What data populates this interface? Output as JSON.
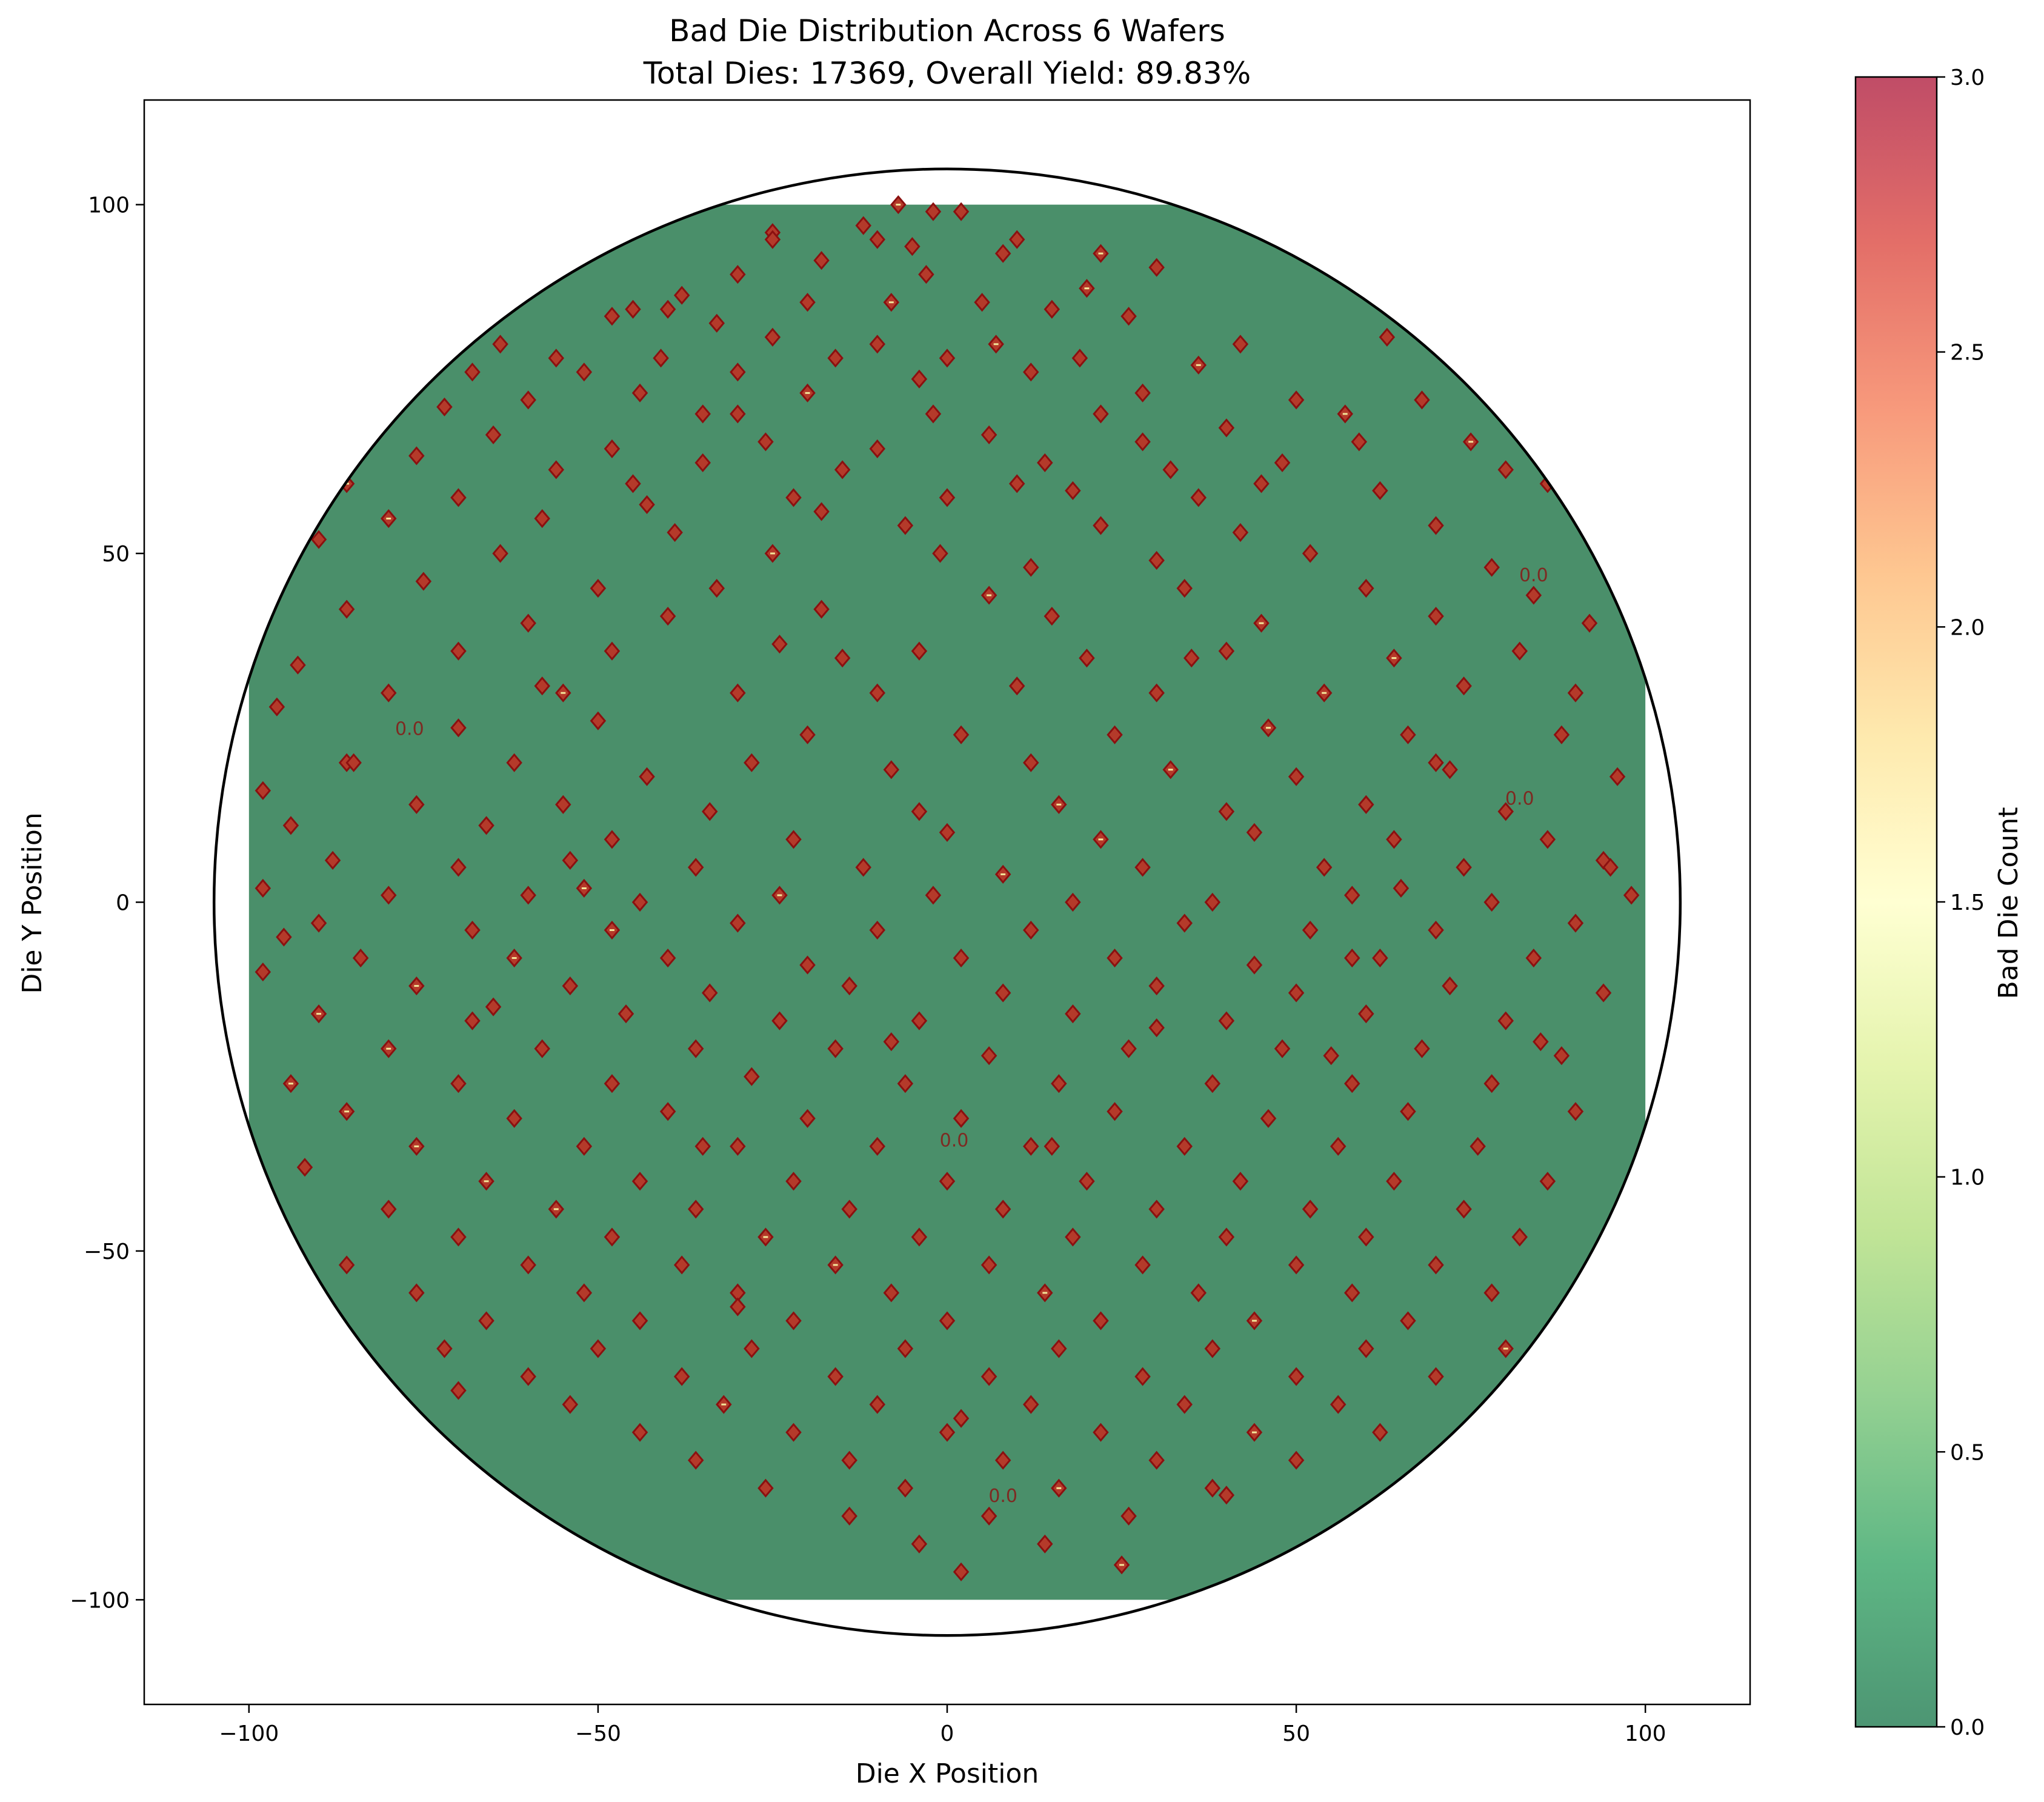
{
  "chart_data": {
    "type": "heatmap",
    "title_line1": "Bad Die Distribution Across 6 Wafers",
    "title_line2": "Total Dies: 17369, Overall Yield: 89.83%",
    "xlabel": "Die X Position",
    "ylabel": "Die Y Position",
    "xlim": [
      -115,
      115
    ],
    "ylim": [
      -115,
      115
    ],
    "x_ticks": [
      -100,
      -50,
      0,
      50,
      100
    ],
    "y_ticks": [
      -100,
      -50,
      0,
      50,
      100
    ],
    "x_tick_labels": [
      "−100",
      "−50",
      "0",
      "50",
      "100"
    ],
    "y_tick_labels": [
      "−100",
      "−50",
      "0",
      "50",
      "100"
    ],
    "grid_extent": [
      -100,
      100
    ],
    "wafer_outline": {
      "center": [
        0,
        0
      ],
      "radius": 105
    },
    "grid": false,
    "colorbar": {
      "label": "Bad Die Count",
      "range": [
        0,
        3
      ],
      "ticks": [
        0,
        0.5,
        1,
        1.5,
        2,
        2.5,
        3
      ],
      "tick_labels": [
        "0.0",
        "0.5",
        "1.0",
        "1.5",
        "2.0",
        "2.5",
        "3.0"
      ],
      "colormap": "RdYlGn_r",
      "stops": [
        "#006837",
        "#1a9850",
        "#66bd63",
        "#a6d96a",
        "#d9ef8b",
        "#ffffbf",
        "#fee08b",
        "#fdae61",
        "#f46d43",
        "#d73027",
        "#a50026"
      ],
      "alpha": 0.7
    },
    "contour_label": "0.0",
    "contour_label_positions": [
      [
        -77,
        24
      ],
      [
        84,
        46
      ],
      [
        82,
        14
      ],
      [
        1,
        -35
      ],
      [
        8,
        -86
      ]
    ],
    "colors": {
      "background_good": "#4a8f6a",
      "defect": "#8b1010",
      "defect_fill": "#b43a2a",
      "defect_highlight": "#f3e59a"
    },
    "defect_points": [
      [
        -7,
        100
      ],
      [
        -2,
        99
      ],
      [
        2,
        99
      ],
      [
        -12,
        97
      ],
      [
        -25,
        96
      ],
      [
        -10,
        95
      ],
      [
        -5,
        94
      ],
      [
        10,
        95
      ],
      [
        8,
        93
      ],
      [
        22,
        93
      ],
      [
        -18,
        92
      ],
      [
        30,
        91
      ],
      [
        -30,
        90
      ],
      [
        -3,
        90
      ],
      [
        -60,
        88
      ],
      [
        -38,
        87
      ],
      [
        -45,
        85
      ],
      [
        -20,
        86
      ],
      [
        -8,
        86
      ],
      [
        5,
        86
      ],
      [
        15,
        85
      ],
      [
        26,
        84
      ],
      [
        -48,
        84
      ],
      [
        -33,
        83
      ],
      [
        -64,
        80
      ],
      [
        -25,
        81
      ],
      [
        -10,
        80
      ],
      [
        7,
        80
      ],
      [
        42,
        80
      ],
      [
        63,
        81
      ],
      [
        -77,
        79
      ],
      [
        -56,
        78
      ],
      [
        -41,
        78
      ],
      [
        -16,
        78
      ],
      [
        0,
        78
      ],
      [
        19,
        78
      ],
      [
        36,
        77
      ],
      [
        -68,
        76
      ],
      [
        -52,
        76
      ],
      [
        -30,
        76
      ],
      [
        -4,
        75
      ],
      [
        12,
        76
      ],
      [
        -81,
        74
      ],
      [
        -60,
        72
      ],
      [
        -44,
        73
      ],
      [
        -20,
        73
      ],
      [
        28,
        73
      ],
      [
        50,
        72
      ],
      [
        68,
        72
      ],
      [
        -72,
        71
      ],
      [
        -35,
        70
      ],
      [
        -2,
        70
      ],
      [
        22,
        70
      ],
      [
        40,
        68
      ],
      [
        57,
        70
      ],
      [
        -84,
        68
      ],
      [
        -65,
        67
      ],
      [
        -48,
        65
      ],
      [
        -26,
        66
      ],
      [
        -10,
        65
      ],
      [
        6,
        67
      ],
      [
        28,
        66
      ],
      [
        59,
        66
      ],
      [
        75,
        66
      ],
      [
        -76,
        64
      ],
      [
        -56,
        62
      ],
      [
        -35,
        63
      ],
      [
        -15,
        62
      ],
      [
        14,
        63
      ],
      [
        32,
        62
      ],
      [
        48,
        63
      ],
      [
        80,
        62
      ],
      [
        -86,
        60
      ],
      [
        -70,
        58
      ],
      [
        -43,
        57
      ],
      [
        -22,
        58
      ],
      [
        0,
        58
      ],
      [
        18,
        59
      ],
      [
        36,
        58
      ],
      [
        62,
        59
      ],
      [
        86,
        60
      ],
      [
        -80,
        55
      ],
      [
        -58,
        55
      ],
      [
        -39,
        53
      ],
      [
        -6,
        54
      ],
      [
        22,
        54
      ],
      [
        42,
        53
      ],
      [
        70,
        54
      ],
      [
        -90,
        52
      ],
      [
        -64,
        50
      ],
      [
        -25,
        50
      ],
      [
        -1,
        50
      ],
      [
        12,
        48
      ],
      [
        30,
        49
      ],
      [
        52,
        50
      ],
      [
        78,
        48
      ],
      [
        -75,
        46
      ],
      [
        -50,
        45
      ],
      [
        -33,
        45
      ],
      [
        6,
        44
      ],
      [
        34,
        45
      ],
      [
        60,
        45
      ],
      [
        84,
        44
      ],
      [
        -86,
        42
      ],
      [
        -60,
        40
      ],
      [
        -40,
        41
      ],
      [
        -18,
        42
      ],
      [
        15,
        41
      ],
      [
        45,
        40
      ],
      [
        70,
        41
      ],
      [
        92,
        40
      ],
      [
        -70,
        36
      ],
      [
        -48,
        36
      ],
      [
        -24,
        37
      ],
      [
        -4,
        36
      ],
      [
        20,
        35
      ],
      [
        40,
        36
      ],
      [
        64,
        35
      ],
      [
        82,
        36
      ],
      [
        -93,
        34
      ],
      [
        -80,
        30
      ],
      [
        -58,
        31
      ],
      [
        -30,
        30
      ],
      [
        -10,
        30
      ],
      [
        10,
        31
      ],
      [
        30,
        30
      ],
      [
        54,
        30
      ],
      [
        74,
        31
      ],
      [
        90,
        30
      ],
      [
        -96,
        28
      ],
      [
        -70,
        25
      ],
      [
        -50,
        26
      ],
      [
        -20,
        24
      ],
      [
        2,
        24
      ],
      [
        24,
        24
      ],
      [
        46,
        25
      ],
      [
        66,
        24
      ],
      [
        88,
        24
      ],
      [
        -86,
        20
      ],
      [
        -62,
        20
      ],
      [
        -43,
        18
      ],
      [
        -28,
        20
      ],
      [
        -8,
        19
      ],
      [
        12,
        20
      ],
      [
        32,
        19
      ],
      [
        50,
        18
      ],
      [
        72,
        19
      ],
      [
        96,
        18
      ],
      [
        -98,
        16
      ],
      [
        -76,
        14
      ],
      [
        -55,
        14
      ],
      [
        -34,
        13
      ],
      [
        -4,
        13
      ],
      [
        16,
        14
      ],
      [
        40,
        13
      ],
      [
        60,
        14
      ],
      [
        80,
        13
      ],
      [
        -94,
        11
      ],
      [
        -66,
        11
      ],
      [
        -48,
        9
      ],
      [
        -22,
        9
      ],
      [
        0,
        10
      ],
      [
        22,
        9
      ],
      [
        44,
        10
      ],
      [
        64,
        9
      ],
      [
        86,
        9
      ],
      [
        -88,
        6
      ],
      [
        -70,
        5
      ],
      [
        -54,
        6
      ],
      [
        -36,
        5
      ],
      [
        -12,
        5
      ],
      [
        8,
        4
      ],
      [
        28,
        5
      ],
      [
        54,
        5
      ],
      [
        74,
        5
      ],
      [
        94,
        6
      ],
      [
        -98,
        2
      ],
      [
        -80,
        1
      ],
      [
        -60,
        1
      ],
      [
        -44,
        0
      ],
      [
        -24,
        1
      ],
      [
        -2,
        1
      ],
      [
        18,
        0
      ],
      [
        38,
        0
      ],
      [
        58,
        1
      ],
      [
        78,
        0
      ],
      [
        98,
        1
      ],
      [
        -90,
        -3
      ],
      [
        -68,
        -4
      ],
      [
        -48,
        -4
      ],
      [
        -30,
        -3
      ],
      [
        -10,
        -4
      ],
      [
        12,
        -4
      ],
      [
        34,
        -3
      ],
      [
        52,
        -4
      ],
      [
        70,
        -4
      ],
      [
        90,
        -3
      ],
      [
        -84,
        -8
      ],
      [
        -62,
        -8
      ],
      [
        -40,
        -8
      ],
      [
        -20,
        -9
      ],
      [
        2,
        -8
      ],
      [
        24,
        -8
      ],
      [
        44,
        -9
      ],
      [
        62,
        -8
      ],
      [
        84,
        -8
      ],
      [
        -98,
        -10
      ],
      [
        -76,
        -12
      ],
      [
        -54,
        -12
      ],
      [
        -34,
        -13
      ],
      [
        -14,
        -12
      ],
      [
        8,
        -13
      ],
      [
        30,
        -12
      ],
      [
        50,
        -13
      ],
      [
        72,
        -12
      ],
      [
        94,
        -13
      ],
      [
        -90,
        -16
      ],
      [
        -68,
        -17
      ],
      [
        -46,
        -16
      ],
      [
        -24,
        -17
      ],
      [
        -4,
        -17
      ],
      [
        18,
        -16
      ],
      [
        40,
        -17
      ],
      [
        60,
        -16
      ],
      [
        80,
        -17
      ],
      [
        -80,
        -21
      ],
      [
        -58,
        -21
      ],
      [
        -36,
        -21
      ],
      [
        -16,
        -21
      ],
      [
        6,
        -22
      ],
      [
        26,
        -21
      ],
      [
        48,
        -21
      ],
      [
        68,
        -21
      ],
      [
        88,
        -22
      ],
      [
        -94,
        -26
      ],
      [
        -70,
        -26
      ],
      [
        -48,
        -26
      ],
      [
        -28,
        -25
      ],
      [
        -6,
        -26
      ],
      [
        16,
        -26
      ],
      [
        38,
        -26
      ],
      [
        58,
        -26
      ],
      [
        78,
        -26
      ],
      [
        -86,
        -30
      ],
      [
        -62,
        -31
      ],
      [
        -40,
        -30
      ],
      [
        -20,
        -31
      ],
      [
        2,
        -31
      ],
      [
        24,
        -30
      ],
      [
        46,
        -31
      ],
      [
        66,
        -30
      ],
      [
        90,
        -30
      ],
      [
        -76,
        -35
      ],
      [
        -52,
        -35
      ],
      [
        -30,
        -35
      ],
      [
        -10,
        -35
      ],
      [
        12,
        -35
      ],
      [
        34,
        -35
      ],
      [
        56,
        -35
      ],
      [
        76,
        -35
      ],
      [
        -92,
        -38
      ],
      [
        -66,
        -40
      ],
      [
        -44,
        -40
      ],
      [
        -22,
        -40
      ],
      [
        0,
        -40
      ],
      [
        20,
        -40
      ],
      [
        42,
        -40
      ],
      [
        64,
        -40
      ],
      [
        86,
        -40
      ],
      [
        -80,
        -44
      ],
      [
        -56,
        -44
      ],
      [
        -36,
        -44
      ],
      [
        -14,
        -44
      ],
      [
        8,
        -44
      ],
      [
        30,
        -44
      ],
      [
        52,
        -44
      ],
      [
        74,
        -44
      ],
      [
        -70,
        -48
      ],
      [
        -48,
        -48
      ],
      [
        -26,
        -48
      ],
      [
        -4,
        -48
      ],
      [
        18,
        -48
      ],
      [
        40,
        -48
      ],
      [
        60,
        -48
      ],
      [
        82,
        -48
      ],
      [
        -86,
        -52
      ],
      [
        -60,
        -52
      ],
      [
        -38,
        -52
      ],
      [
        -16,
        -52
      ],
      [
        6,
        -52
      ],
      [
        28,
        -52
      ],
      [
        50,
        -52
      ],
      [
        70,
        -52
      ],
      [
        -76,
        -56
      ],
      [
        -52,
        -56
      ],
      [
        -30,
        -56
      ],
      [
        -8,
        -56
      ],
      [
        14,
        -56
      ],
      [
        36,
        -56
      ],
      [
        58,
        -56
      ],
      [
        78,
        -56
      ],
      [
        -66,
        -60
      ],
      [
        -44,
        -60
      ],
      [
        -22,
        -60
      ],
      [
        0,
        -60
      ],
      [
        22,
        -60
      ],
      [
        44,
        -60
      ],
      [
        66,
        -60
      ],
      [
        -72,
        -64
      ],
      [
        -50,
        -64
      ],
      [
        -28,
        -64
      ],
      [
        -6,
        -64
      ],
      [
        16,
        -64
      ],
      [
        38,
        -64
      ],
      [
        60,
        -64
      ],
      [
        80,
        -64
      ],
      [
        -60,
        -68
      ],
      [
        -38,
        -68
      ],
      [
        -16,
        -68
      ],
      [
        6,
        -68
      ],
      [
        28,
        -68
      ],
      [
        50,
        -68
      ],
      [
        70,
        -68
      ],
      [
        -54,
        -72
      ],
      [
        -32,
        -72
      ],
      [
        -10,
        -72
      ],
      [
        12,
        -72
      ],
      [
        34,
        -72
      ],
      [
        56,
        -72
      ],
      [
        -44,
        -76
      ],
      [
        -22,
        -76
      ],
      [
        0,
        -76
      ],
      [
        22,
        -76
      ],
      [
        44,
        -76
      ],
      [
        62,
        -76
      ],
      [
        -36,
        -80
      ],
      [
        -14,
        -80
      ],
      [
        8,
        -80
      ],
      [
        30,
        -80
      ],
      [
        50,
        -80
      ],
      [
        -26,
        -84
      ],
      [
        -6,
        -84
      ],
      [
        16,
        -84
      ],
      [
        38,
        -84
      ],
      [
        -14,
        -88
      ],
      [
        6,
        -88
      ],
      [
        26,
        -88
      ],
      [
        -4,
        -92
      ],
      [
        14,
        -92
      ],
      [
        2,
        -96
      ],
      [
        -30,
        70
      ],
      [
        -55,
        30
      ],
      [
        -18,
        56
      ],
      [
        55,
        -22
      ],
      [
        30,
        -18
      ],
      [
        -65,
        -15
      ],
      [
        65,
        2
      ],
      [
        -30,
        -58
      ],
      [
        2,
        -74
      ],
      [
        58,
        -8
      ],
      [
        20,
        88
      ],
      [
        -45,
        60
      ],
      [
        45,
        60
      ],
      [
        -85,
        20
      ],
      [
        85,
        -20
      ],
      [
        -15,
        35
      ],
      [
        15,
        -35
      ],
      [
        -35,
        -35
      ],
      [
        35,
        35
      ],
      [
        -52,
        2
      ],
      [
        10,
        60
      ],
      [
        -8,
        -20
      ],
      [
        70,
        20
      ],
      [
        -70,
        -70
      ],
      [
        40,
        -85
      ],
      [
        -40,
        85
      ],
      [
        95,
        5
      ],
      [
        -95,
        -5
      ],
      [
        25,
        -95
      ],
      [
        -25,
        95
      ]
    ]
  }
}
